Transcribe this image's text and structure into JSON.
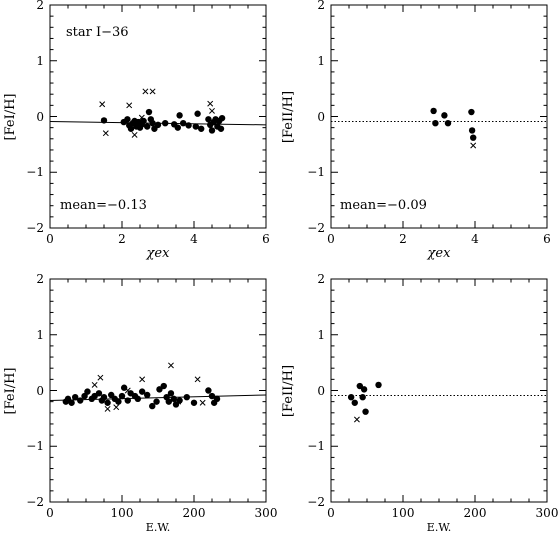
{
  "chart_data": [
    {
      "id": "feI_vs_chiex",
      "type": "scatter",
      "xlabel": "χex",
      "ylabel": "[FeI/H]",
      "xlim": [
        0,
        6
      ],
      "ylim": [
        -2,
        2
      ],
      "xticks": [
        "0",
        "2",
        "4",
        "6"
      ],
      "yticks": [
        "2",
        "1",
        "0",
        "−1",
        "−2"
      ],
      "annotations": [
        "star I−36",
        "mean=−0.13"
      ],
      "fit_line": {
        "x": [
          0,
          6
        ],
        "y": [
          -0.09,
          -0.15
        ],
        "style": "solid"
      },
      "dots": [
        [
          1.5,
          -0.07
        ],
        [
          2.05,
          -0.1
        ],
        [
          2.15,
          -0.05
        ],
        [
          2.2,
          -0.16
        ],
        [
          2.25,
          -0.22
        ],
        [
          2.3,
          -0.12
        ],
        [
          2.35,
          -0.08
        ],
        [
          2.4,
          -0.18
        ],
        [
          2.45,
          -0.1
        ],
        [
          2.5,
          -0.2
        ],
        [
          2.55,
          -0.14
        ],
        [
          2.6,
          -0.08
        ],
        [
          2.7,
          -0.18
        ],
        [
          2.75,
          0.08
        ],
        [
          2.8,
          -0.05
        ],
        [
          2.85,
          -0.12
        ],
        [
          2.9,
          -0.22
        ],
        [
          3.0,
          -0.15
        ],
        [
          3.2,
          -0.12
        ],
        [
          3.45,
          -0.14
        ],
        [
          3.55,
          -0.2
        ],
        [
          3.6,
          0.02
        ],
        [
          3.7,
          -0.12
        ],
        [
          3.85,
          -0.16
        ],
        [
          4.05,
          -0.18
        ],
        [
          4.1,
          0.05
        ],
        [
          4.2,
          -0.22
        ],
        [
          4.4,
          -0.05
        ],
        [
          4.45,
          -0.15
        ],
        [
          4.5,
          -0.25
        ],
        [
          4.55,
          -0.1
        ],
        [
          4.6,
          -0.05
        ],
        [
          4.65,
          -0.18
        ],
        [
          4.7,
          -0.08
        ],
        [
          4.75,
          -0.22
        ],
        [
          4.78,
          -0.03
        ]
      ],
      "crosses": [
        [
          1.45,
          0.22
        ],
        [
          1.55,
          -0.3
        ],
        [
          2.2,
          0.2
        ],
        [
          2.35,
          -0.33
        ],
        [
          2.55,
          -0.02
        ],
        [
          2.65,
          0.45
        ],
        [
          2.85,
          0.45
        ],
        [
          4.45,
          0.23
        ],
        [
          4.5,
          0.1
        ]
      ]
    },
    {
      "id": "feII_vs_chiex",
      "type": "scatter",
      "xlabel": "χex",
      "ylabel": "[FeII/H]",
      "xlim": [
        0,
        6
      ],
      "ylim": [
        -2,
        2
      ],
      "xticks": [
        "0",
        "2",
        "4",
        "6"
      ],
      "yticks": [
        "2",
        "1",
        "0",
        "−1",
        "−2"
      ],
      "annotations": [
        "mean=−0.09"
      ],
      "fit_line": {
        "x": [
          0,
          6
        ],
        "y": [
          -0.09,
          -0.09
        ],
        "style": "dotted"
      },
      "dots": [
        [
          2.85,
          0.1
        ],
        [
          2.9,
          -0.12
        ],
        [
          3.15,
          0.02
        ],
        [
          3.25,
          -0.12
        ],
        [
          3.9,
          0.08
        ],
        [
          3.92,
          -0.25
        ],
        [
          3.95,
          -0.38
        ]
      ],
      "crosses": [
        [
          3.95,
          -0.52
        ]
      ]
    },
    {
      "id": "feI_vs_ew",
      "type": "scatter",
      "xlabel": "E.W.",
      "ylabel": "[FeI/H]",
      "xlim": [
        0,
        300
      ],
      "ylim": [
        -2,
        2
      ],
      "xticks": [
        "0",
        "100",
        "200",
        "300"
      ],
      "yticks": [
        "2",
        "1",
        "0",
        "−1",
        "−2"
      ],
      "annotations": [],
      "fit_line": {
        "x": [
          0,
          300
        ],
        "y": [
          -0.18,
          -0.08
        ],
        "style": "solid"
      },
      "dots": [
        [
          22,
          -0.2
        ],
        [
          25,
          -0.15
        ],
        [
          30,
          -0.22
        ],
        [
          35,
          -0.12
        ],
        [
          42,
          -0.18
        ],
        [
          48,
          -0.1
        ],
        [
          52,
          -0.02
        ],
        [
          58,
          -0.15
        ],
        [
          62,
          -0.1
        ],
        [
          68,
          -0.05
        ],
        [
          72,
          -0.18
        ],
        [
          75,
          -0.12
        ],
        [
          80,
          -0.22
        ],
        [
          85,
          -0.08
        ],
        [
          90,
          -0.15
        ],
        [
          95,
          -0.2
        ],
        [
          100,
          -0.1
        ],
        [
          103,
          0.05
        ],
        [
          108,
          -0.18
        ],
        [
          112,
          -0.05
        ],
        [
          118,
          -0.1
        ],
        [
          122,
          -0.15
        ],
        [
          128,
          -0.02
        ],
        [
          135,
          -0.08
        ],
        [
          142,
          -0.28
        ],
        [
          148,
          -0.2
        ],
        [
          152,
          0.02
        ],
        [
          158,
          0.08
        ],
        [
          162,
          -0.12
        ],
        [
          165,
          -0.2
        ],
        [
          168,
          -0.05
        ],
        [
          172,
          -0.15
        ],
        [
          175,
          -0.25
        ],
        [
          180,
          -0.18
        ],
        [
          190,
          -0.12
        ],
        [
          200,
          -0.22
        ],
        [
          220,
          0.0
        ],
        [
          225,
          -0.1
        ],
        [
          228,
          -0.22
        ],
        [
          232,
          -0.15
        ]
      ],
      "crosses": [
        [
          62,
          0.1
        ],
        [
          70,
          0.23
        ],
        [
          80,
          -0.33
        ],
        [
          92,
          -0.3
        ],
        [
          108,
          0.0
        ],
        [
          128,
          0.2
        ],
        [
          168,
          0.45
        ],
        [
          178,
          -0.2
        ],
        [
          205,
          0.2
        ],
        [
          212,
          -0.22
        ]
      ]
    },
    {
      "id": "feII_vs_ew",
      "type": "scatter",
      "xlabel": "E.W.",
      "ylabel": "[FeII/H]",
      "xlim": [
        0,
        300
      ],
      "ylim": [
        -2,
        2
      ],
      "xticks": [
        "0",
        "100",
        "200",
        "300"
      ],
      "yticks": [
        "2",
        "1",
        "0",
        "−1",
        "−2"
      ],
      "annotations": [],
      "fit_line": {
        "x": [
          0,
          300
        ],
        "y": [
          -0.09,
          -0.09
        ],
        "style": "dotted"
      },
      "dots": [
        [
          28,
          -0.12
        ],
        [
          33,
          -0.22
        ],
        [
          40,
          0.08
        ],
        [
          44,
          -0.12
        ],
        [
          46,
          0.02
        ],
        [
          48,
          -0.38
        ],
        [
          66,
          0.1
        ]
      ],
      "crosses": [
        [
          36,
          -0.52
        ]
      ]
    }
  ]
}
